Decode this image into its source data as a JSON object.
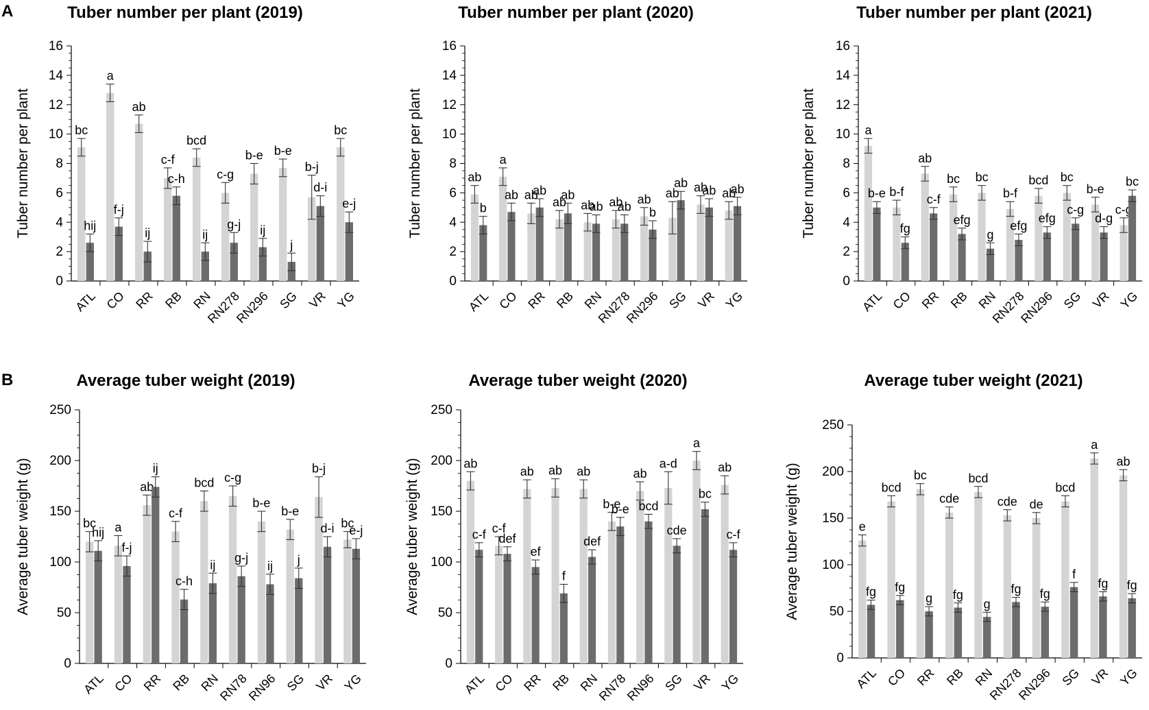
{
  "panel_labels": [
    "A",
    "B"
  ],
  "colors": {
    "light_bar": "#d4d4d4",
    "dark_bar": "#6c6c6c",
    "axis": "#000000",
    "error_bar": "#333333"
  },
  "chart_data": [
    {
      "id": "tuber-number-2019",
      "type": "bar",
      "title": "Tuber number per plant (2019)",
      "xlabel": "",
      "ylabel": "Tuber number per plant",
      "ylim": [
        0,
        16
      ],
      "yticks": [
        0,
        2,
        4,
        6,
        8,
        10,
        12,
        14,
        16
      ],
      "grid": false,
      "categories": [
        "ATL",
        "CO",
        "RR",
        "RB",
        "RN",
        "RN278",
        "RN296",
        "SG",
        "VR",
        "YG"
      ],
      "series": [
        {
          "name": "light",
          "values": [
            9.1,
            12.8,
            10.7,
            7.0,
            8.4,
            6.0,
            7.3,
            7.7,
            5.7,
            9.1
          ],
          "errors": [
            0.6,
            0.6,
            0.6,
            0.7,
            0.6,
            0.7,
            0.7,
            0.6,
            1.5,
            0.6
          ],
          "labels": [
            "bc",
            "a",
            "ab",
            "c-f",
            "bcd",
            "c-g",
            "b-e",
            "b-e",
            "b-j",
            "bc"
          ]
        },
        {
          "name": "dark",
          "values": [
            2.6,
            3.7,
            2.0,
            5.8,
            2.0,
            2.6,
            2.3,
            1.3,
            5.1,
            4.0
          ],
          "errors": [
            0.6,
            0.6,
            0.7,
            0.6,
            0.6,
            0.7,
            0.6,
            0.6,
            0.7,
            0.7
          ],
          "labels": [
            "hij",
            "f-j",
            "ij",
            "c-h",
            "ij",
            "g-j",
            "ij",
            "j",
            "d-i",
            "e-j"
          ]
        }
      ]
    },
    {
      "id": "tuber-number-2020",
      "type": "bar",
      "title": "Tuber number per plant (2020)",
      "xlabel": "",
      "ylabel": "Tuber number per plant",
      "ylim": [
        0,
        16
      ],
      "yticks": [
        0,
        2,
        4,
        6,
        8,
        10,
        12,
        14,
        16
      ],
      "grid": false,
      "categories": [
        "ATL",
        "CO",
        "RR",
        "RB",
        "RN",
        "RN278",
        "RN296",
        "SG",
        "VR",
        "YG"
      ],
      "series": [
        {
          "name": "light",
          "values": [
            5.9,
            7.1,
            4.6,
            4.2,
            4.0,
            4.2,
            4.4,
            4.3,
            5.2,
            4.8
          ],
          "errors": [
            0.6,
            0.6,
            0.7,
            0.6,
            0.6,
            0.6,
            0.6,
            1.1,
            0.6,
            0.6
          ],
          "labels": [
            "ab",
            "a",
            "ab",
            "ab",
            "ab",
            "ab",
            "ab",
            "ab",
            "ab",
            "ab"
          ]
        },
        {
          "name": "dark",
          "values": [
            3.8,
            4.7,
            5.0,
            4.6,
            3.9,
            3.9,
            3.5,
            5.5,
            5.0,
            5.1
          ],
          "errors": [
            0.6,
            0.6,
            0.6,
            0.7,
            0.6,
            0.6,
            0.6,
            0.6,
            0.6,
            0.6
          ],
          "labels": [
            "b",
            "ab",
            "ab",
            "ab",
            "ab",
            "ab",
            "b",
            "ab",
            "ab",
            "ab"
          ]
        }
      ]
    },
    {
      "id": "tuber-number-2021",
      "type": "bar",
      "title": "Tuber number per plant  (2021)",
      "xlabel": "",
      "ylabel": "Tuber number per plant",
      "ylim": [
        0,
        16
      ],
      "yticks": [
        0,
        2,
        4,
        6,
        8,
        10,
        12,
        14,
        16
      ],
      "grid": false,
      "categories": [
        "ATL",
        "CO",
        "RR",
        "RB",
        "RN",
        "RN278",
        "RN296",
        "SG",
        "VR",
        "YG"
      ],
      "series": [
        {
          "name": "light",
          "values": [
            9.2,
            5.0,
            7.3,
            5.9,
            6.0,
            4.9,
            5.8,
            6.0,
            5.2,
            3.8
          ],
          "errors": [
            0.5,
            0.5,
            0.5,
            0.5,
            0.5,
            0.5,
            0.5,
            0.5,
            0.5,
            0.5
          ],
          "labels": [
            "a",
            "b-f",
            "ab",
            "bc",
            "bc",
            "b-f",
            "bcd",
            "bc",
            "b-e",
            "c-g"
          ]
        },
        {
          "name": "dark",
          "values": [
            5.0,
            2.6,
            4.6,
            3.2,
            2.2,
            2.8,
            3.3,
            3.9,
            3.3,
            5.8
          ],
          "errors": [
            0.4,
            0.4,
            0.4,
            0.4,
            0.4,
            0.4,
            0.4,
            0.4,
            0.4,
            0.4
          ],
          "labels": [
            "b-e",
            "fg",
            "c-f",
            "efg",
            "g",
            "efg",
            "efg",
            "c-g",
            "d-g",
            "bc"
          ]
        }
      ]
    },
    {
      "id": "tuber-weight-2019",
      "type": "bar",
      "title": "Average tuber weight (2019)",
      "xlabel": "",
      "ylabel": "Average tuber weight (g)",
      "ylim": [
        0,
        250
      ],
      "yticks": [
        0,
        50,
        100,
        150,
        200,
        250
      ],
      "grid": false,
      "categories": [
        "ATL",
        "CO",
        "RR",
        "RB",
        "RN",
        "RN78",
        "RN96",
        "SG",
        "VR",
        "YG"
      ],
      "series": [
        {
          "name": "light",
          "values": [
            120,
            116,
            156,
            130,
            160,
            165,
            140,
            132,
            164,
            122
          ],
          "errors": [
            10,
            10,
            10,
            10,
            10,
            10,
            10,
            10,
            20,
            8
          ],
          "labels": [
            "bc",
            "a",
            "ab",
            "c-f",
            "bcd",
            "c-g",
            "b-e",
            "b-e",
            "b-j",
            "bc"
          ]
        },
        {
          "name": "dark",
          "values": [
            111,
            96,
            174,
            63,
            79,
            86,
            78,
            84,
            115,
            113
          ],
          "errors": [
            10,
            10,
            10,
            10,
            10,
            10,
            10,
            10,
            10,
            10
          ],
          "labels": [
            "hij",
            "f-j",
            "ij",
            "c-h",
            "ij",
            "g-j",
            "ij",
            "j",
            "d-i",
            "e-j"
          ]
        }
      ]
    },
    {
      "id": "tuber-weight-2020",
      "type": "bar",
      "title": "Average tuber weight  (2020)",
      "xlabel": "",
      "ylabel": "Average tuber weight (g)",
      "ylim": [
        0,
        250
      ],
      "yticks": [
        0,
        50,
        100,
        150,
        200,
        250
      ],
      "grid": false,
      "categories": [
        "ATL",
        "CO",
        "RR",
        "RB",
        "RN",
        "RN78",
        "RN96",
        "SG",
        "VR",
        "YG"
      ],
      "series": [
        {
          "name": "light",
          "values": [
            180,
            116,
            172,
            173,
            172,
            140,
            170,
            173,
            200,
            176
          ],
          "errors": [
            9,
            9,
            9,
            9,
            9,
            9,
            9,
            16,
            9,
            9
          ],
          "labels": [
            "ab",
            "c-f",
            "ab",
            "ab",
            "ab",
            "b-e",
            "ab",
            "a-d",
            "a",
            "ab"
          ]
        },
        {
          "name": "dark",
          "values": [
            112,
            108,
            95,
            69,
            105,
            135,
            140,
            116,
            152,
            112
          ],
          "errors": [
            7,
            7,
            7,
            9,
            7,
            9,
            7,
            7,
            7,
            7
          ],
          "labels": [
            "c-f",
            "def",
            "ef",
            "f",
            "def",
            "b-e",
            "bcd",
            "cde",
            "bc",
            "c-f"
          ]
        }
      ]
    },
    {
      "id": "tuber-weight-2021",
      "type": "bar",
      "title": "Average tuber weight  (2021)",
      "xlabel": "",
      "ylabel": "Average tuber weight (g)",
      "ylim": [
        0,
        250
      ],
      "yticks": [
        0,
        50,
        100,
        150,
        200,
        250
      ],
      "grid": false,
      "categories": [
        "ATL",
        "CO",
        "RR",
        "RB",
        "RN",
        "RN278",
        "RN296",
        "SG",
        "VR",
        "YG"
      ],
      "series": [
        {
          "name": "light",
          "values": [
            126,
            168,
            181,
            156,
            178,
            153,
            150,
            168,
            214,
            196
          ],
          "errors": [
            6,
            6,
            6,
            6,
            6,
            6,
            6,
            6,
            6,
            6
          ],
          "labels": [
            "e",
            "bcd",
            "bc",
            "cde",
            "bcd",
            "cde",
            "de",
            "bcd",
            "a",
            "ab"
          ]
        },
        {
          "name": "dark",
          "values": [
            57,
            62,
            50,
            54,
            44,
            60,
            55,
            76,
            66,
            64
          ],
          "errors": [
            5,
            5,
            5,
            5,
            5,
            5,
            5,
            5,
            5,
            5
          ],
          "labels": [
            "fg",
            "fg",
            "g",
            "fg",
            "g",
            "fg",
            "fg",
            "f",
            "fg",
            "fg"
          ]
        }
      ]
    }
  ]
}
